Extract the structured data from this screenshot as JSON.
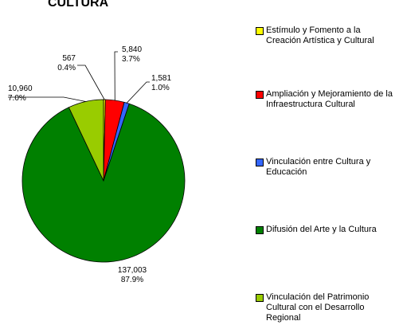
{
  "chart_data": {
    "type": "pie",
    "title": "CULTURA",
    "categories": [
      "Estímulo y Fomento a la Creación Artística y Cultural",
      "Ampliación y Mejoramiento de la Infraestructura Cultural",
      "Vinculación entre Cultura y Educación",
      "Difusión del Arte y la Cultura",
      "Vinculación del Patrimonio Cultural con el Desarrollo Regional"
    ],
    "values": [
      567,
      5840,
      1581,
      137003,
      10960
    ],
    "value_labels": [
      "567",
      "5,840",
      "1,581",
      "137,003",
      "10,960"
    ],
    "percents": [
      0.4,
      3.7,
      1.0,
      87.9,
      7.0
    ],
    "percent_labels": [
      "0.4%",
      "3.7%",
      "1.0%",
      "87.9%",
      "7.0%"
    ],
    "colors": [
      "#ffff00",
      "#ff0000",
      "#3366ff",
      "#008000",
      "#99cc00"
    ],
    "legend": "right"
  }
}
